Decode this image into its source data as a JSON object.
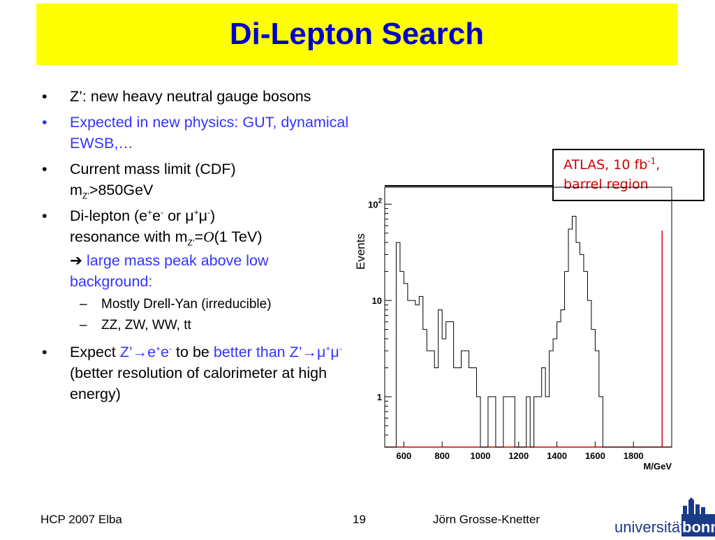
{
  "slide": {
    "title": "Di-Lepton Search",
    "bullets": {
      "b1": "Z’: new heavy neutral gauge bosons",
      "b2": "Expected in new physics: GUT, dynamical EWSB,…",
      "b3": {
        "text": "Current mass limit (CDF)",
        "m": "m",
        "sub": "Z’",
        "rest": ">850GeV"
      },
      "b4": {
        "p1": "Di-lepton (e",
        "p2": "e",
        "p3": " or μ",
        "p4": "μ",
        "p5": ")",
        "p6": "resonance with m",
        "p7": "Z’",
        "p8": "=",
        "p9": "O",
        "p10": "(1 TeV)"
      },
      "arrow": "➔",
      "arrow_text": "large mass peak above low background:",
      "sub1": "Mostly Drell-Yan (irreducible)",
      "sub2": "ZZ, ZW, WW, tt",
      "b5": {
        "p1": "Expect ",
        "p2": "Z’→e",
        "p3": "e",
        "p4": " to be ",
        "p5": "better than Z’→μ",
        "p6": "μ",
        "p7": " (better resolution of calorimeter at high energy)"
      }
    },
    "sup_plus": "+",
    "sup_minus": "-",
    "bullet_char": "•",
    "dash_char": "–",
    "callout": {
      "line1": "ATLAS, 10 fb",
      "sup": "-1",
      "line1_end": ",",
      "line2": "barrel region"
    },
    "footer": {
      "left": "HCP 2007 Elba",
      "page": "19",
      "author": "Jörn Grosse-Knetter"
    },
    "logo": {
      "text": "universität",
      "bold": "bonn"
    }
  },
  "chart_data": {
    "type": "histogram",
    "xlabel": "M/GeV",
    "ylabel": "Events",
    "x_ticks": [
      600,
      800,
      1000,
      1200,
      1400,
      1600,
      1800
    ],
    "y_ticks": [
      1,
      10,
      100
    ],
    "y_tick_labels": [
      "1",
      "10",
      "10^2"
    ],
    "ylog": true,
    "xlim": [
      500,
      2000
    ],
    "ylim": [
      0.3,
      150
    ],
    "bin_width": 20,
    "bin_start": 500,
    "counts": [
      0.3,
      0.3,
      0.3,
      40,
      20,
      15,
      10,
      10,
      9,
      11,
      5,
      3,
      3,
      2,
      8,
      4,
      6,
      6,
      2,
      2,
      3,
      3,
      2,
      2,
      1,
      0.3,
      0.3,
      1,
      1,
      0.3,
      0.3,
      1,
      1,
      1,
      0.3,
      0.3,
      0.3,
      1,
      0.3,
      1,
      1,
      2,
      1,
      3,
      4,
      6,
      8,
      20,
      55,
      75,
      40,
      30,
      20,
      10,
      5,
      3,
      1,
      0.3,
      0.3,
      0.3,
      0.3,
      0.3,
      0.3,
      0.3,
      0.3,
      0.3,
      0.3,
      0.3,
      0.3,
      0.3,
      0.3,
      0.3,
      0.3,
      0.3,
      0.3
    ],
    "marker_x": 1950,
    "colors": {
      "hist": "#000000",
      "marker": "#cc0000",
      "axis": "#cc0000"
    }
  }
}
